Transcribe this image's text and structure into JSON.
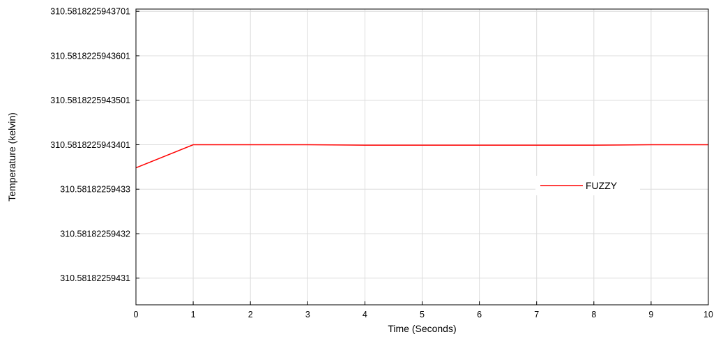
{
  "chart_data": {
    "type": "line",
    "xlabel": "Time (Seconds)",
    "ylabel": "Temperature (kelvin)",
    "xlim": [
      0,
      10
    ],
    "x_ticks": [
      0,
      1,
      2,
      3,
      4,
      5,
      6,
      7,
      8,
      9,
      10
    ],
    "x_tick_labels": [
      "0",
      "1",
      "2",
      "3",
      "4",
      "5",
      "6",
      "7",
      "8",
      "9",
      "10"
    ],
    "y_ticks": [
      {
        "label": "310.5818225943701",
        "value": 6
      },
      {
        "label": "310.5818225943601",
        "value": 5
      },
      {
        "label": "310.5818225943501",
        "value": 4
      },
      {
        "label": "310.5818225943401",
        "value": 3
      },
      {
        "label": "310.58182259433",
        "value": 2
      },
      {
        "label": "310.58182259432",
        "value": 1
      },
      {
        "label": "310.58182259431",
        "value": 0
      }
    ],
    "ylim": [
      -0.6,
      6.05
    ],
    "grid": true,
    "legend_position": "right",
    "series": [
      {
        "name": "FUZZY",
        "color": "#ff0000",
        "x": [
          0,
          1,
          2,
          3,
          4,
          5,
          6,
          7,
          8,
          9,
          10
        ],
        "y": [
          2.48,
          3.0,
          3.0,
          3.0,
          2.99,
          2.99,
          2.99,
          2.99,
          2.99,
          3.0,
          3.0
        ]
      }
    ]
  }
}
